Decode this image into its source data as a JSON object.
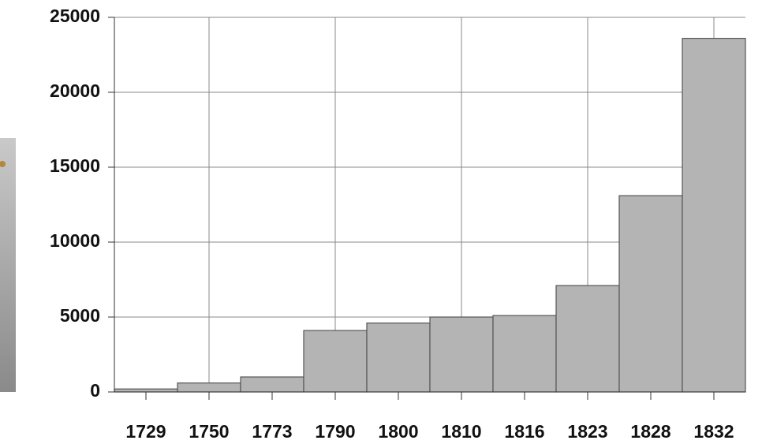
{
  "chart_data": {
    "type": "bar",
    "categories": [
      "1729",
      "1750",
      "1773",
      "1790",
      "1800",
      "1810",
      "1816",
      "1823",
      "1828",
      "1832"
    ],
    "values": [
      200,
      600,
      1000,
      4100,
      4600,
      5000,
      5100,
      7100,
      13100,
      23600
    ],
    "color": "#b4b4b4",
    "ylim": [
      0,
      25000
    ],
    "yticks": [
      0,
      5000,
      10000,
      15000,
      20000,
      25000
    ],
    "grid": true
  }
}
